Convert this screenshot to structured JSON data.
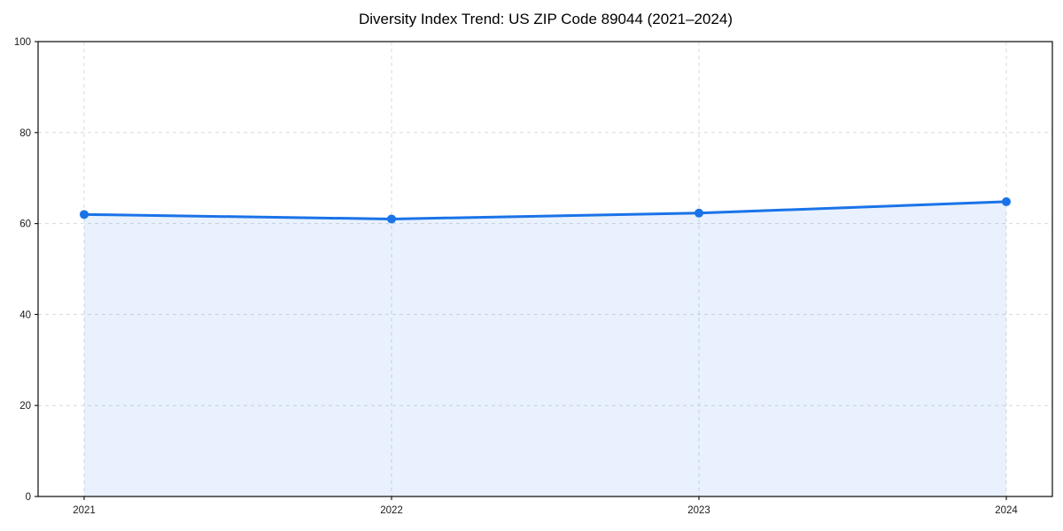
{
  "chart_data": {
    "type": "area",
    "title": "Diversity Index Trend: US ZIP Code 89044 (2021–2024)",
    "xlabel": "",
    "ylabel": "",
    "x": [
      2021,
      2022,
      2023,
      2024
    ],
    "series": [
      {
        "name": "Diversity Index",
        "values": [
          62,
          61,
          62.3,
          64.8
        ]
      }
    ],
    "ylim": [
      0,
      100
    ],
    "yticks": [
      0,
      20,
      40,
      60,
      80,
      100
    ],
    "grid": "dashed",
    "legend": "none",
    "colors": {
      "line": "#1a73e8",
      "marker": "#1a73e8",
      "fill": "#1a73e8",
      "fill_opacity": 0.1,
      "gridline": "#d9d9d9",
      "spine": "#1a1a1a",
      "tick_text": "#1a1a1a",
      "background": "#ffffff"
    }
  }
}
